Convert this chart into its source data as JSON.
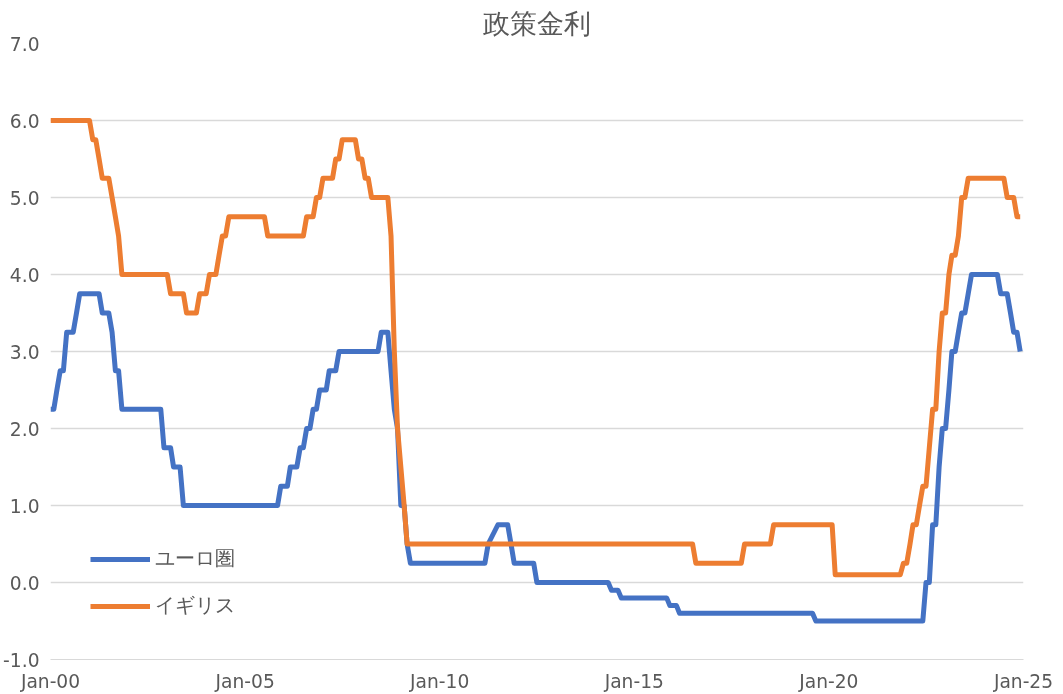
{
  "chart_data": {
    "type": "line",
    "title": "政策金利",
    "xlim": [
      "2000-01",
      "2025-01"
    ],
    "xticks": [
      {
        "value": "2000-01",
        "label": "Jan-00"
      },
      {
        "value": "2005-01",
        "label": "Jan-05"
      },
      {
        "value": "2010-01",
        "label": "Jan-10"
      },
      {
        "value": "2015-01",
        "label": "Jan-15"
      },
      {
        "value": "2020-01",
        "label": "Jan-20"
      },
      {
        "value": "2025-01",
        "label": "Jan-25"
      }
    ],
    "ylim": [
      -1,
      7
    ],
    "yticks": [
      {
        "value": -1,
        "label": "-1.0"
      },
      {
        "value": 0,
        "label": "0.0"
      },
      {
        "value": 1,
        "label": "1.0"
      },
      {
        "value": 2,
        "label": "2.0"
      },
      {
        "value": 3,
        "label": "3.0"
      },
      {
        "value": 4,
        "label": "4.0"
      },
      {
        "value": 5,
        "label": "5.0"
      },
      {
        "value": 6,
        "label": "6.0"
      },
      {
        "value": 7,
        "label": "7.0"
      }
    ],
    "grid": "y",
    "legend": "bottom left",
    "line_style": "solid",
    "marker": "none",
    "series": [
      {
        "name": "ユーロ圏",
        "color": "#4472c4",
        "x": [
          "2000-01",
          "2000-02",
          "2000-03",
          "2000-04",
          "2000-05",
          "2000-06",
          "2000-08",
          "2000-09",
          "2000-10",
          "2001-04",
          "2001-05",
          "2001-07",
          "2001-08",
          "2001-09",
          "2001-10",
          "2001-11",
          "2002-11",
          "2002-12",
          "2003-02",
          "2003-03",
          "2003-05",
          "2003-06",
          "2005-11",
          "2005-12",
          "2006-02",
          "2006-03",
          "2006-05",
          "2006-06",
          "2006-07",
          "2006-08",
          "2006-09",
          "2006-10",
          "2006-11",
          "2006-12",
          "2007-02",
          "2007-03",
          "2007-05",
          "2007-06",
          "2008-06",
          "2008-07",
          "2008-09",
          "2008-10",
          "2008-11",
          "2008-12",
          "2009-01",
          "2009-02",
          "2009-03",
          "2009-04",
          "2011-03",
          "2011-04",
          "2011-07",
          "2011-10",
          "2011-11",
          "2011-12",
          "2012-06",
          "2012-07",
          "2014-05",
          "2014-06",
          "2014-08",
          "2014-09",
          "2015-11",
          "2015-12",
          "2016-02",
          "2016-03",
          "2019-08",
          "2019-09",
          "2022-06",
          "2022-07",
          "2022-08",
          "2022-09",
          "2022-10",
          "2022-11",
          "2022-12",
          "2023-01",
          "2023-02",
          "2023-03",
          "2023-04",
          "2023-05",
          "2023-06",
          "2023-07",
          "2023-08",
          "2023-09",
          "2024-05",
          "2024-06",
          "2024-08",
          "2024-09",
          "2024-10",
          "2024-11",
          "2024-12"
        ],
        "values": [
          2.25,
          2.25,
          2.5,
          2.75,
          2.75,
          3.25,
          3.25,
          3.5,
          3.75,
          3.75,
          3.5,
          3.5,
          3.25,
          2.75,
          2.75,
          2.25,
          2.25,
          1.75,
          1.75,
          1.5,
          1.5,
          1.0,
          1.0,
          1.25,
          1.25,
          1.5,
          1.5,
          1.75,
          1.75,
          2.0,
          2.0,
          2.25,
          2.25,
          2.5,
          2.5,
          2.75,
          2.75,
          3.0,
          3.0,
          3.25,
          3.25,
          2.75,
          2.25,
          2.0,
          1.0,
          1.0,
          0.5,
          0.25,
          0.25,
          0.5,
          0.75,
          0.75,
          0.5,
          0.25,
          0.25,
          0.0,
          0.0,
          -0.1,
          -0.1,
          -0.2,
          -0.2,
          -0.3,
          -0.3,
          -0.4,
          -0.4,
          -0.5,
          -0.5,
          0.0,
          0.0,
          0.75,
          0.75,
          1.5,
          2.0,
          2.0,
          2.5,
          3.0,
          3.0,
          3.25,
          3.5,
          3.5,
          3.75,
          4.0,
          4.0,
          3.75,
          3.75,
          3.5,
          3.25,
          3.25,
          3.0
        ]
      },
      {
        "name": "イギリス",
        "color": "#ed7d31",
        "x": [
          "2000-01",
          "2001-01",
          "2001-02",
          "2001-03",
          "2001-04",
          "2001-05",
          "2001-07",
          "2001-08",
          "2001-09",
          "2001-10",
          "2001-11",
          "2003-01",
          "2003-02",
          "2003-06",
          "2003-07",
          "2003-10",
          "2003-11",
          "2004-01",
          "2004-02",
          "2004-04",
          "2004-05",
          "2004-06",
          "2004-07",
          "2004-08",
          "2005-07",
          "2005-08",
          "2006-07",
          "2006-08",
          "2006-10",
          "2006-11",
          "2006-12",
          "2007-01",
          "2007-04",
          "2007-05",
          "2007-06",
          "2007-07",
          "2007-11",
          "2007-12",
          "2008-01",
          "2008-02",
          "2008-03",
          "2008-04",
          "2008-09",
          "2008-10",
          "2008-11",
          "2008-12",
          "2009-01",
          "2009-02",
          "2009-03",
          "2016-07",
          "2016-08",
          "2017-10",
          "2017-11",
          "2018-07",
          "2018-08",
          "2020-02",
          "2020-03",
          "2021-11",
          "2021-12",
          "2022-01",
          "2022-02",
          "2022-03",
          "2022-04",
          "2022-05",
          "2022-06",
          "2022-07",
          "2022-08",
          "2022-09",
          "2022-10",
          "2022-11",
          "2022-12",
          "2023-01",
          "2023-02",
          "2023-03",
          "2023-04",
          "2023-05",
          "2023-06",
          "2023-07",
          "2023-08",
          "2024-07",
          "2024-08",
          "2024-10",
          "2024-11",
          "2024-12"
        ],
        "values": [
          6.0,
          6.0,
          5.75,
          5.75,
          5.5,
          5.25,
          5.25,
          5.0,
          4.75,
          4.5,
          4.0,
          4.0,
          3.75,
          3.75,
          3.5,
          3.5,
          3.75,
          3.75,
          4.0,
          4.0,
          4.25,
          4.5,
          4.5,
          4.75,
          4.75,
          4.5,
          4.5,
          4.75,
          4.75,
          5.0,
          5.0,
          5.25,
          5.25,
          5.5,
          5.5,
          5.75,
          5.75,
          5.5,
          5.5,
          5.25,
          5.25,
          5.0,
          5.0,
          4.5,
          3.0,
          2.0,
          1.5,
          1.0,
          0.5,
          0.5,
          0.25,
          0.25,
          0.5,
          0.5,
          0.75,
          0.75,
          0.1,
          0.1,
          0.25,
          0.25,
          0.5,
          0.75,
          0.75,
          1.0,
          1.25,
          1.25,
          1.75,
          2.25,
          2.25,
          3.0,
          3.5,
          3.5,
          4.0,
          4.25,
          4.25,
          4.5,
          5.0,
          5.0,
          5.25,
          5.25,
          5.0,
          5.0,
          4.75,
          4.75
        ]
      }
    ]
  }
}
